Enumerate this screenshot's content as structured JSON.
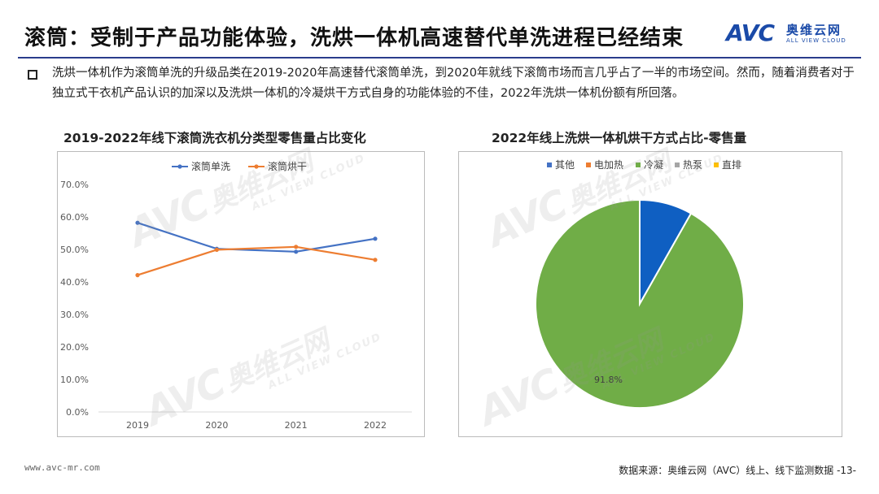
{
  "header": {
    "title": "滚筒：受制于产品功能体验，洗烘一体机高速替代单洗进程已经结束",
    "logo_word": "AVC",
    "logo_cn": "奥维云网",
    "logo_en": "ALL VIEW CLOUD"
  },
  "description": "洗烘一体机作为滚筒单洗的升级品类在2019-2020年高速替代滚筒单洗，到2020年就线下滚筒市场而言几乎占了一半的市场空间。然而，随着消费者对于独立式干衣机产品认识的加深以及洗烘一体机的冷凝烘干方式自身的功能体验的不佳，2022年洗烘一体机份额有所回落。",
  "colors": {
    "blue": "#4472c4",
    "orange": "#ed7d31",
    "green": "#70ad47",
    "gray": "#a5a5a5",
    "darkblue": "#0f5fc2",
    "yellow": "#ffc000"
  },
  "watermark": {
    "big": "AVC",
    "cn": "奥维云网",
    "sub": "ALL VIEW CLOUD"
  },
  "footer": {
    "website": "www.avc-mr.com",
    "source": "数据来源：奥维云网（AVC）线上、线下监测数据 -13-"
  },
  "chart_data": [
    {
      "type": "line",
      "title": "2019-2022年线下滚筒洗衣机分类型零售量占比变化",
      "categories": [
        "2019",
        "2020",
        "2021",
        "2022"
      ],
      "series": [
        {
          "name": "滚筒单洗",
          "values": [
            58.2,
            50.2,
            49.3,
            53.3
          ]
        },
        {
          "name": "滚筒烘干",
          "values": [
            42.1,
            49.9,
            50.8,
            46.8
          ]
        }
      ],
      "ylim": [
        0,
        70
      ],
      "yticks": [
        "0.0%",
        "10.0%",
        "20.0%",
        "30.0%",
        "40.0%",
        "50.0%",
        "60.0%",
        "70.0%"
      ],
      "legend": "top"
    },
    {
      "type": "pie",
      "title": "2022年线上洗烘一体机烘干方式占比-零售量",
      "labels": [
        "其他",
        "电加热",
        "冷凝",
        "热泵",
        "直排"
      ],
      "values": [
        0,
        0,
        91.8,
        0,
        8.2
      ],
      "data_labels": {
        "冷凝": "91.8%"
      },
      "legend": "top"
    }
  ]
}
